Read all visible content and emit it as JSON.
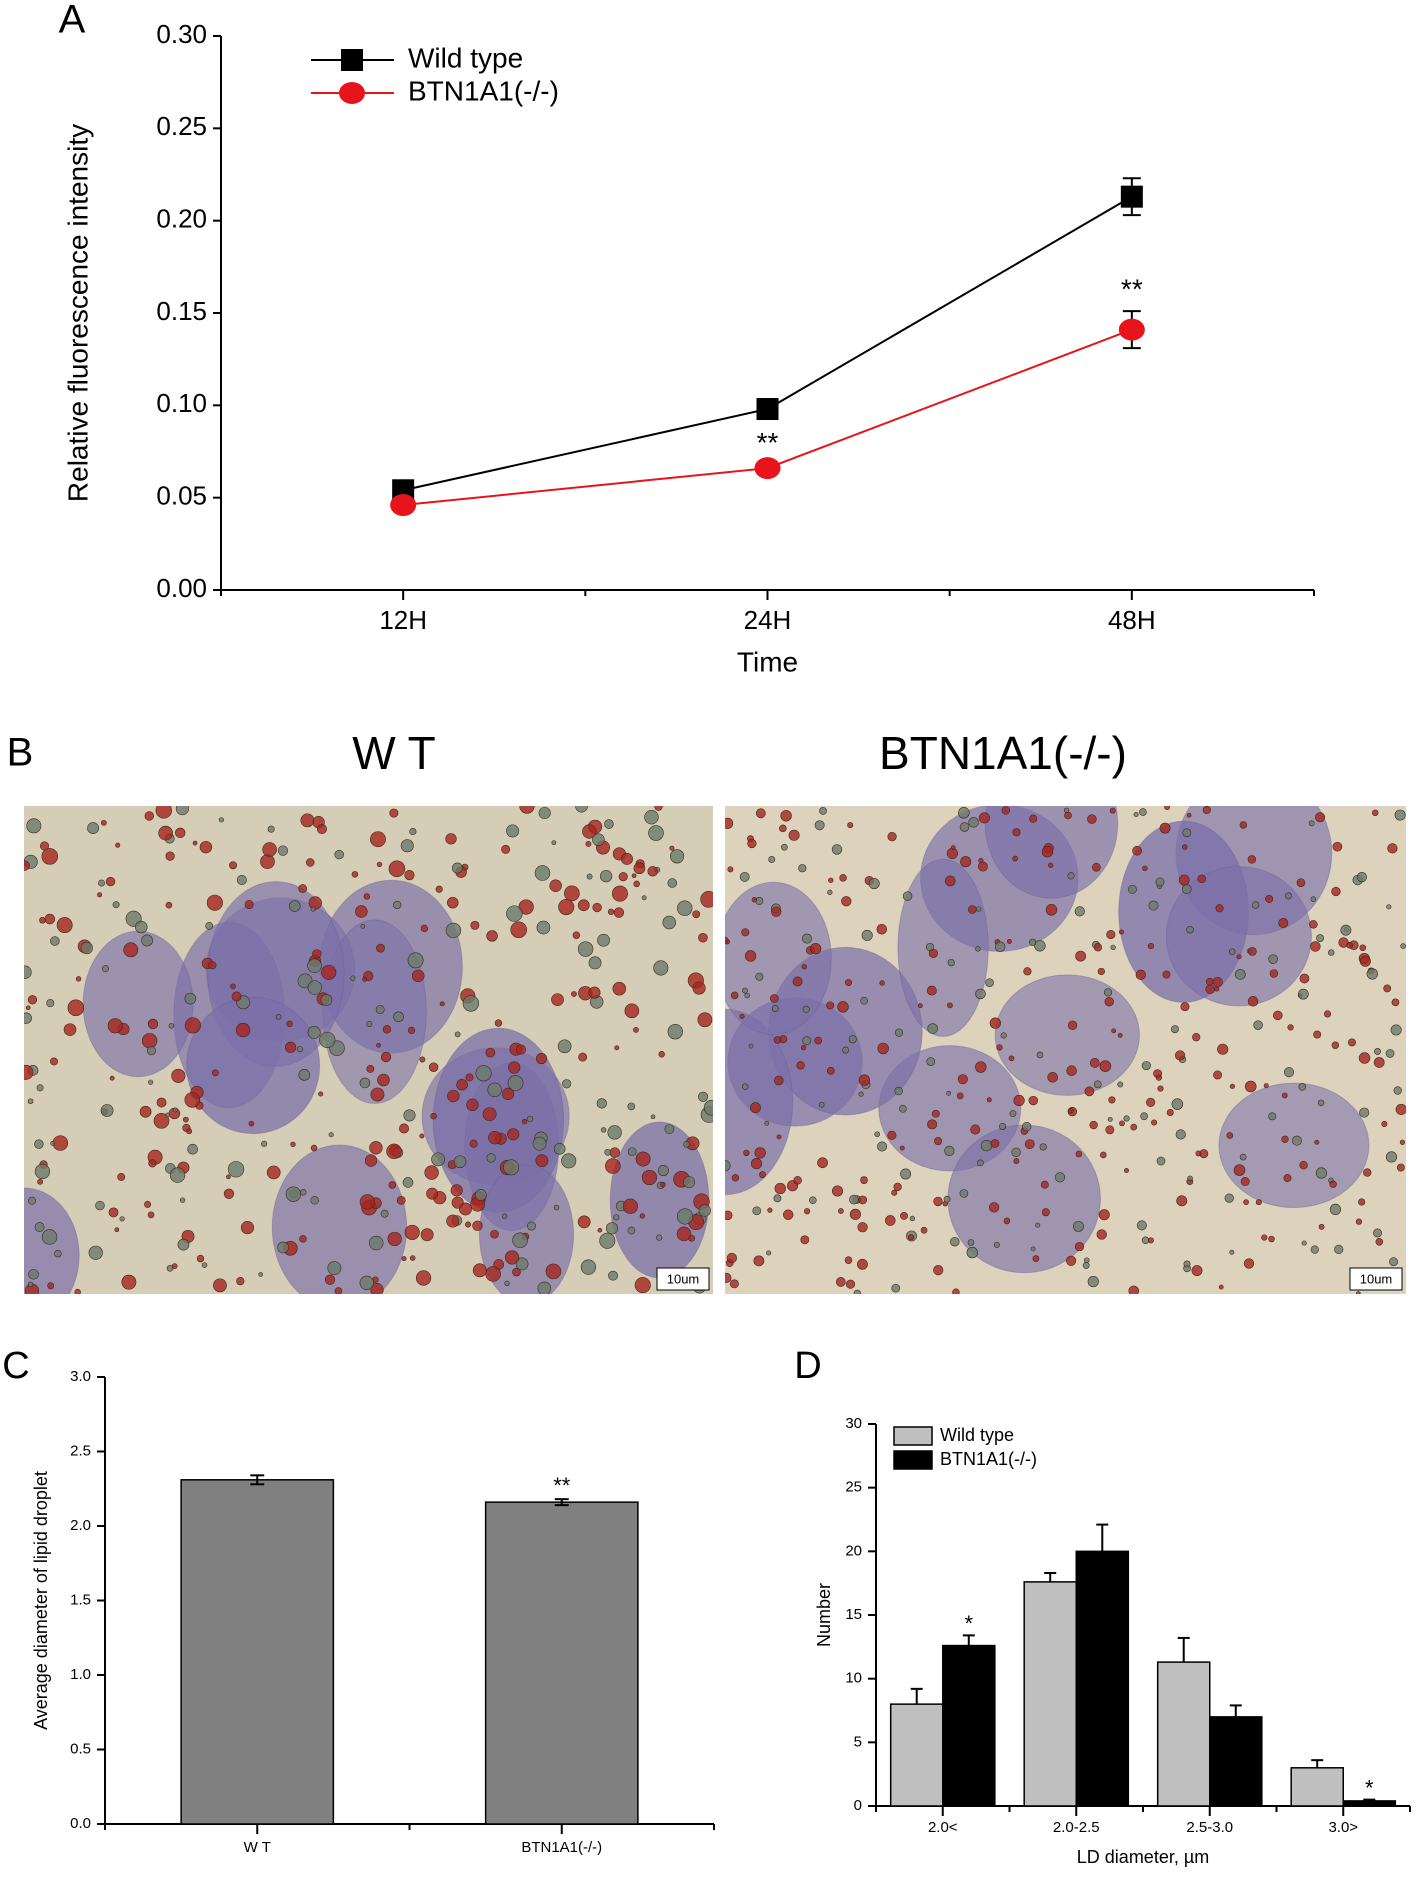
{
  "chart_data": [
    {
      "type": "line",
      "panel_label": "A",
      "xlabel": "Time",
      "ylabel": "Relative fluorescence intensity",
      "categories": [
        "12H",
        "24H",
        "48H"
      ],
      "ylim": [
        0,
        0.3
      ],
      "yticks": [
        {
          "value": 0,
          "label": "0.00"
        },
        {
          "value": 0.05,
          "label": "0.05"
        },
        {
          "value": 0.1,
          "label": "0.10"
        },
        {
          "value": 0.15,
          "label": "0.15"
        },
        {
          "value": 0.2,
          "label": "0.20"
        },
        {
          "value": 0.25,
          "label": "0.25"
        },
        {
          "value": 0.3,
          "label": "0.30"
        }
      ],
      "series": [
        {
          "name": "Wild type",
          "color": "#000000",
          "marker": "square",
          "values": [
            0.054,
            0.098,
            0.213
          ],
          "errors": [
            0.002,
            0.002,
            0.01
          ],
          "annotations": [
            null,
            null,
            null
          ]
        },
        {
          "name": "BTN1A1(-/-)",
          "color": "#e8141b",
          "marker": "circle",
          "values": [
            0.046,
            0.066,
            0.141
          ],
          "errors": [
            0.002,
            0.002,
            0.01
          ],
          "annotations": [
            null,
            "**",
            "**"
          ]
        }
      ]
    },
    {
      "type": "bar",
      "panel_label": "C",
      "ylabel": "Average diameter of lipid droplet",
      "categories": [
        "W T",
        "BTN1A1(-/-)"
      ],
      "values": [
        2.31,
        2.16
      ],
      "errors": [
        0.03,
        0.02
      ],
      "annotations": [
        null,
        "**"
      ],
      "color": "#808080",
      "ylim": [
        0,
        3.0
      ],
      "yticks": [
        {
          "value": 0,
          "label": "0.0"
        },
        {
          "value": 0.5,
          "label": "0.5"
        },
        {
          "value": 1,
          "label": "1.0"
        },
        {
          "value": 1.5,
          "label": "1.5"
        },
        {
          "value": 2,
          "label": "2.0"
        },
        {
          "value": 2.5,
          "label": "2.5"
        },
        {
          "value": 3,
          "label": "3.0"
        }
      ]
    },
    {
      "type": "grouped-bar",
      "panel_label": "D",
      "xlabel": "LD diameter, µm",
      "ylabel": "Number",
      "categories": [
        "2.0<",
        "2.0-2.5",
        "2.5-3.0",
        "3.0>"
      ],
      "ylim": [
        0,
        30
      ],
      "yticks": [
        0,
        5,
        10,
        15,
        20,
        25,
        30
      ],
      "series": [
        {
          "name": "Wild type",
          "color": "#c0c0c0",
          "values": [
            8,
            17.6,
            11.3,
            3
          ],
          "errors": [
            1.2,
            0.7,
            1.9,
            0.6
          ],
          "annotations": [
            null,
            null,
            null,
            null
          ]
        },
        {
          "name": "BTN1A1(-/-)",
          "color": "#000000",
          "values": [
            12.6,
            20,
            7,
            0.4
          ],
          "errors": [
            0.8,
            2.1,
            0.9,
            0.1
          ],
          "annotations": [
            "*",
            null,
            null,
            "*"
          ]
        }
      ]
    }
  ],
  "micrographs": {
    "panel_label": "B",
    "titles": [
      "W T",
      "BTN1A1(-/-)"
    ],
    "scale_bars": [
      "10um",
      "10um"
    ]
  }
}
